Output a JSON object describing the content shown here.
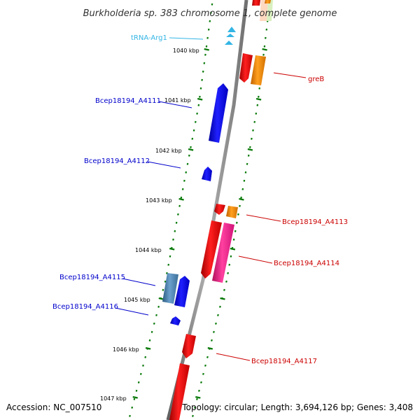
{
  "title": "Burkholderia sp. 383 chromosome 1, complete genome",
  "accession": "Accession: NC_007510",
  "topology": "Topology: circular; Length: 3,694,126 bp; Genes: 3,408",
  "kbp_labels": [
    "1040 kbp",
    "1041 kbp",
    "1042 kbp",
    "1043 kbp",
    "1044 kbp",
    "1045 kbp",
    "1046 kbp",
    "1047 kbp"
  ],
  "gene_labels": {
    "trna_arg1": "tRNA-Arg1",
    "greB": "greB",
    "a4111": "Bcep18194_A4111",
    "a4112": "Bcep18194_A4112",
    "a4113": "Bcep18194_A4113",
    "a4114": "Bcep18194_A4114",
    "a4115": "Bcep18194_A4115",
    "a4116": "Bcep18194_A4116",
    "a4117": "Bcep18194_A4117"
  },
  "colors": {
    "backbone": "#808080",
    "tick": "#0a7a0a",
    "reverse_label": "#0000cc",
    "forward_label": "#cc0000",
    "trna": "#33b5e5",
    "red_gene": "#ff0000",
    "orange_gene": "#ff8c00",
    "pink_gene": "#ff1493",
    "blue_gene": "#0000ff",
    "steel_gene": "#4682b4"
  }
}
